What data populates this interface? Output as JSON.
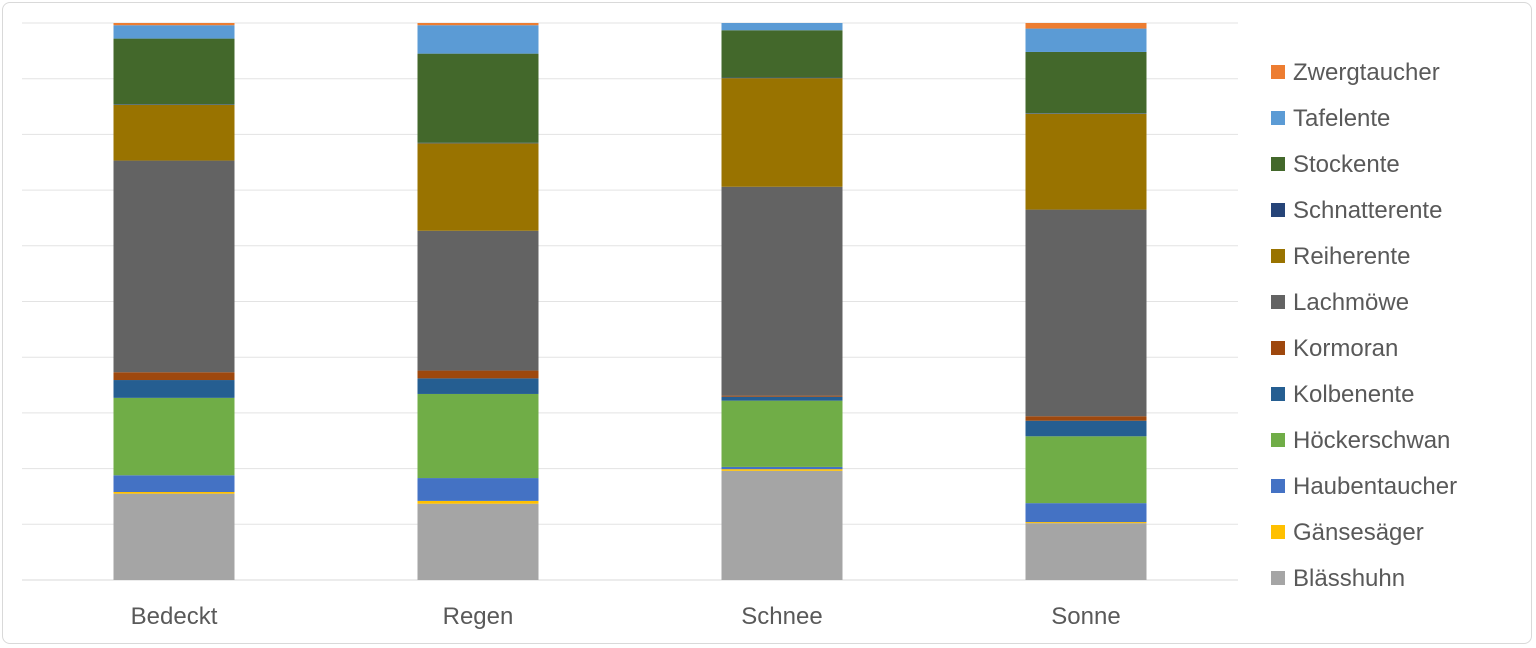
{
  "chart_data": {
    "type": "bar",
    "stacked": true,
    "percent_stacked": true,
    "categories": [
      "Bedeckt",
      "Regen",
      "Schnee",
      "Sonne"
    ],
    "ylim": [
      0,
      1
    ],
    "grid": true,
    "legend_position": "right",
    "series": [
      {
        "name": "Blässhuhn",
        "color": "#a5a5a5",
        "values": [
          0.155,
          0.137,
          0.196,
          0.102
        ]
      },
      {
        "name": "Gänsesäger",
        "color": "#ffc000",
        "values": [
          0.003,
          0.005,
          0.003,
          0.002
        ]
      },
      {
        "name": "Haubentaucher",
        "color": "#4472c4",
        "values": [
          0.03,
          0.041,
          0.004,
          0.034
        ]
      },
      {
        "name": "Höckerschwan",
        "color": "#70ad47",
        "values": [
          0.139,
          0.151,
          0.119,
          0.12
        ]
      },
      {
        "name": "Kolbenente",
        "color": "#255e91",
        "values": [
          0.032,
          0.028,
          0.007,
          0.028
        ]
      },
      {
        "name": "Kormoran",
        "color": "#9e480e",
        "values": [
          0.014,
          0.014,
          0.002,
          0.008
        ]
      },
      {
        "name": "Lachmöwe",
        "color": "#636363",
        "values": [
          0.38,
          0.251,
          0.375,
          0.371
        ]
      },
      {
        "name": "Reiherente",
        "color": "#997300",
        "values": [
          0.1,
          0.157,
          0.195,
          0.172
        ]
      },
      {
        "name": "Schnatterente",
        "color": "#264478",
        "values": [
          0.001,
          0.001,
          0.001,
          0.001
        ]
      },
      {
        "name": "Stockente",
        "color": "#43682b",
        "values": [
          0.118,
          0.16,
          0.085,
          0.11
        ]
      },
      {
        "name": "Tafelente",
        "color": "#5b9bd5",
        "values": [
          0.024,
          0.051,
          0.013,
          0.042
        ]
      },
      {
        "name": "Zwergtaucher",
        "color": "#ed7d31",
        "values": [
          0.004,
          0.004,
          0.0,
          0.01
        ]
      }
    ]
  }
}
